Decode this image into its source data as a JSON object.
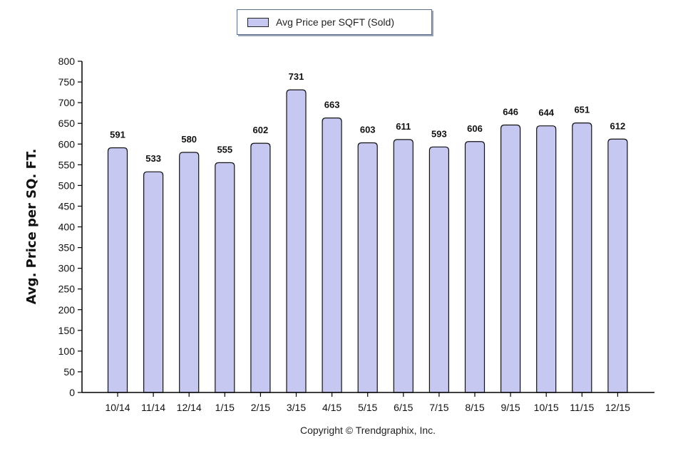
{
  "legend": {
    "label": "Avg Price per SQFT (Sold)",
    "swatch_color": "#c7c8f2"
  },
  "copyright": "Copyright © Trendgraphix, Inc.",
  "chart_data": {
    "type": "bar",
    "categories": [
      "10/14",
      "11/14",
      "12/14",
      "1/15",
      "2/15",
      "3/15",
      "4/15",
      "5/15",
      "6/15",
      "7/15",
      "8/15",
      "9/15",
      "10/15",
      "11/15",
      "12/15"
    ],
    "series": [
      {
        "name": "Avg Price per SQFT (Sold)",
        "values": [
          591,
          533,
          580,
          555,
          602,
          731,
          663,
          603,
          611,
          593,
          606,
          646,
          644,
          651,
          612
        ],
        "color": "#c7c8f2"
      }
    ],
    "ylabel": "Avg. Price per SQ. FT.",
    "ylim": [
      0,
      800
    ],
    "yticks": [
      0,
      50,
      100,
      150,
      200,
      250,
      300,
      350,
      400,
      450,
      500,
      550,
      600,
      650,
      700,
      750,
      800
    ],
    "grid": false,
    "legend_position": "top-center",
    "data_labels": true
  }
}
